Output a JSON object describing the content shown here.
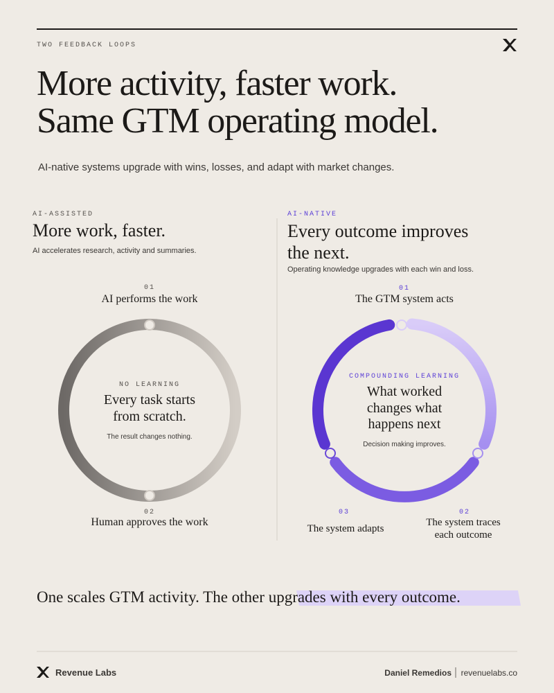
{
  "header": {
    "eyebrow": "TWO FEEDBACK LOOPS",
    "title_lines": [
      "More activity, faster work.",
      "Same GTM operating model."
    ],
    "subtitle": "AI-native systems upgrade with wins, losses, and adapt with market changes."
  },
  "left": {
    "label": "AI-ASSISTED",
    "heading": "More work, faster.",
    "description": "AI accelerates research, activity and summaries.",
    "steps": [
      {
        "number": "01",
        "text": "AI performs the work"
      },
      {
        "number": "02",
        "text": "Human approves the work"
      }
    ],
    "center": {
      "label": "NO LEARNING",
      "lines": [
        "Every task starts",
        "from scratch."
      ],
      "note": "The result changes nothing."
    }
  },
  "right": {
    "label": "AI-NATIVE",
    "heading_lines": [
      "Every outcome improves",
      "the next."
    ],
    "description": "Operating knowledge upgrades with each win and loss.",
    "steps": [
      {
        "number": "01",
        "lines": [
          "The GTM system acts"
        ]
      },
      {
        "number": "02",
        "lines": [
          "The system traces",
          "each outcome"
        ]
      },
      {
        "number": "03",
        "lines": [
          "The system adapts"
        ]
      }
    ],
    "center": {
      "label": "COMPOUNDING LEARNING",
      "lines": [
        "What worked",
        "changes what",
        "happens next"
      ],
      "note": "Decision making improves."
    }
  },
  "statement": {
    "plain": "One scales GTM activity. The other ",
    "highlight": "upgrades with every outcome."
  },
  "footer": {
    "brand": "Revenue Labs",
    "author": "Daniel Remedios",
    "website": "revenuelabs.co"
  }
}
